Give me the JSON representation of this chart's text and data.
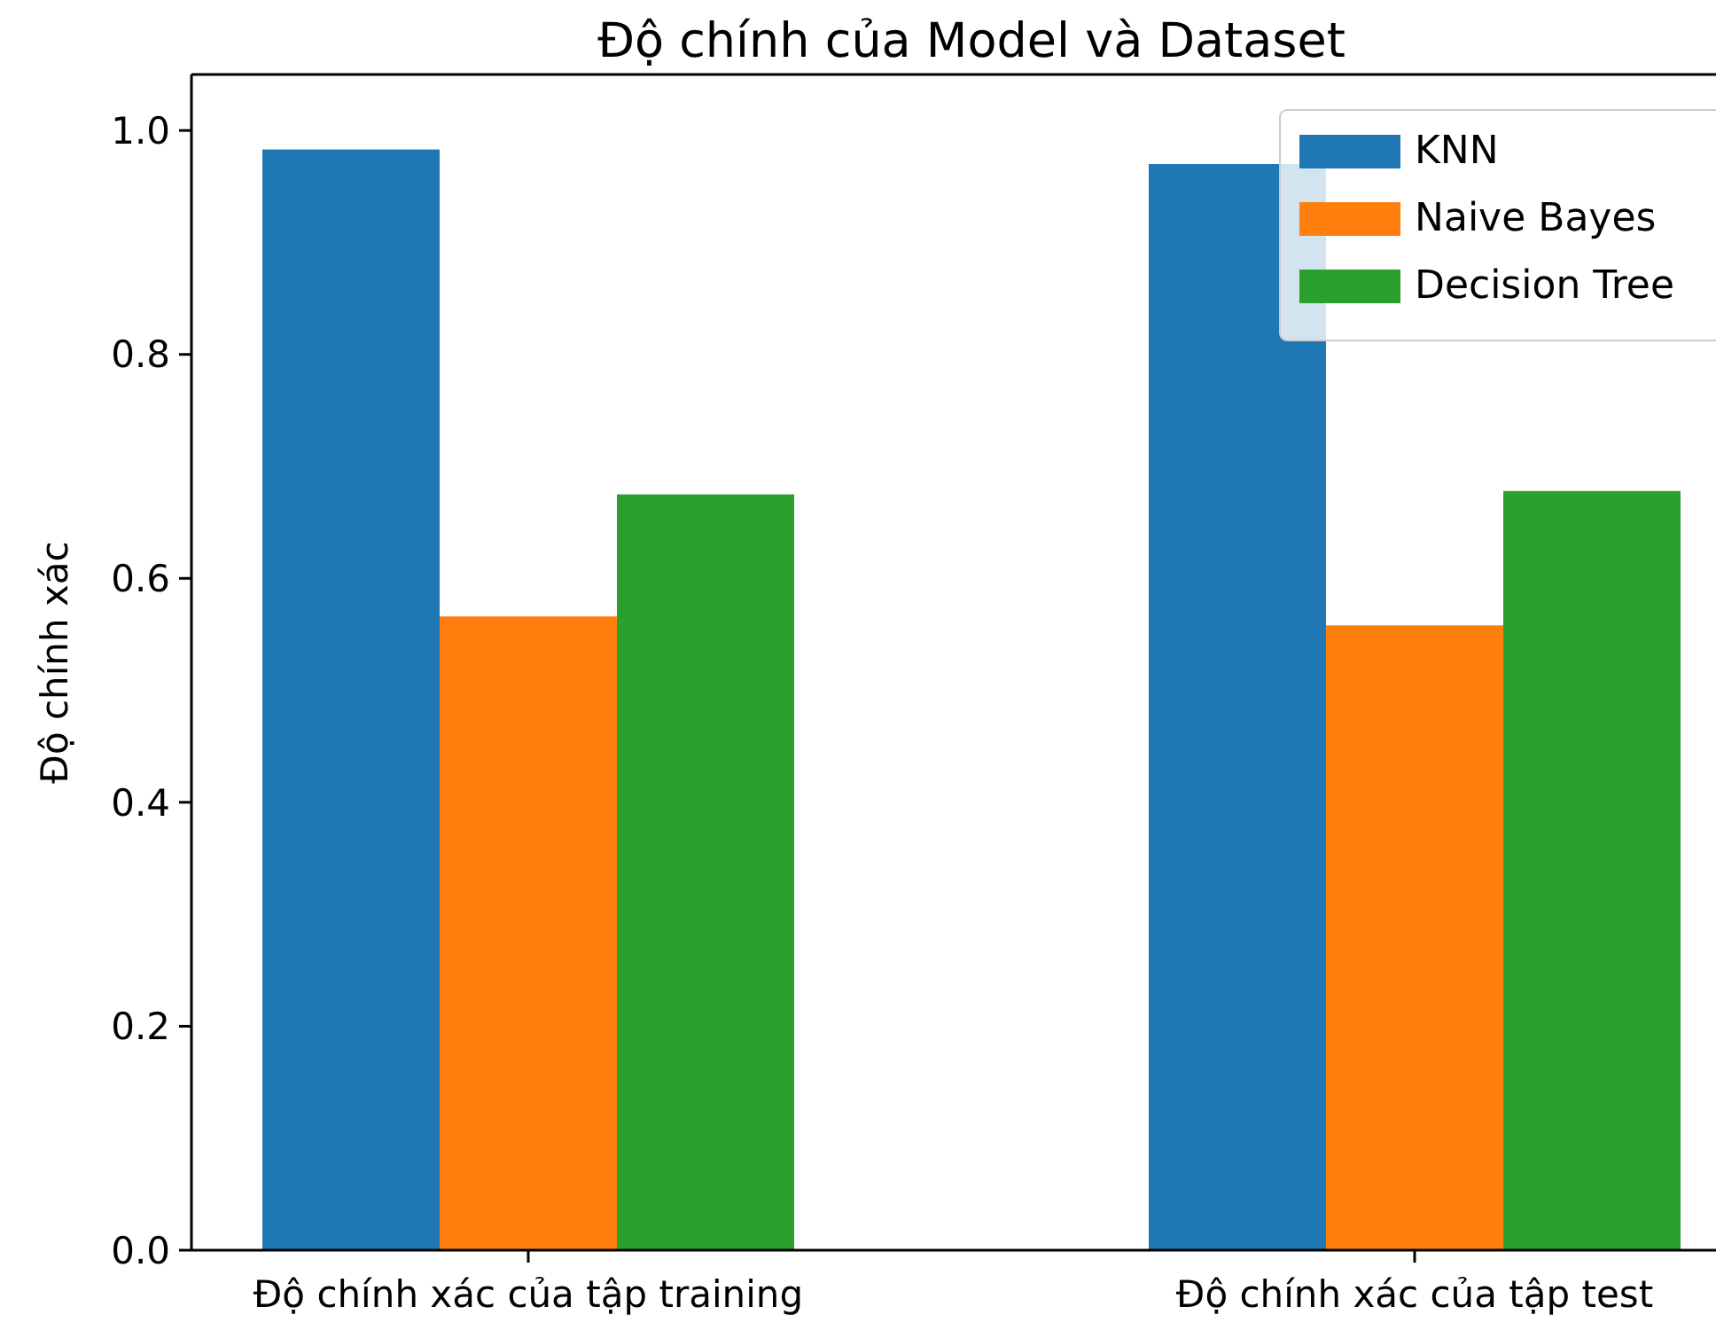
{
  "chart_data": {
    "type": "bar",
    "title": "Độ chính của Model và Dataset",
    "ylabel": "Độ chính xác",
    "categories": [
      "Độ chính xác của tập training",
      "Độ chính xác của tập test"
    ],
    "series": [
      {
        "name": "KNN",
        "color": "#1f77b4",
        "values": [
          0.983,
          0.97
        ]
      },
      {
        "name": "Naive Bayes",
        "color": "#ff7f0e",
        "values": [
          0.566,
          0.558
        ]
      },
      {
        "name": "Decision Tree",
        "color": "#2ca02c",
        "values": [
          0.675,
          0.678
        ]
      }
    ],
    "ylim": [
      0,
      1.05
    ],
    "yticks": [
      {
        "value": 0,
        "label": "0.0"
      },
      {
        "value": 0.2,
        "label": "0.2"
      },
      {
        "value": 0.4,
        "label": "0.4"
      },
      {
        "value": 0.6,
        "label": "0.6"
      },
      {
        "value": 0.8,
        "label": "0.8"
      },
      {
        "value": 1,
        "label": "1.0"
      }
    ],
    "legend": "top right"
  }
}
